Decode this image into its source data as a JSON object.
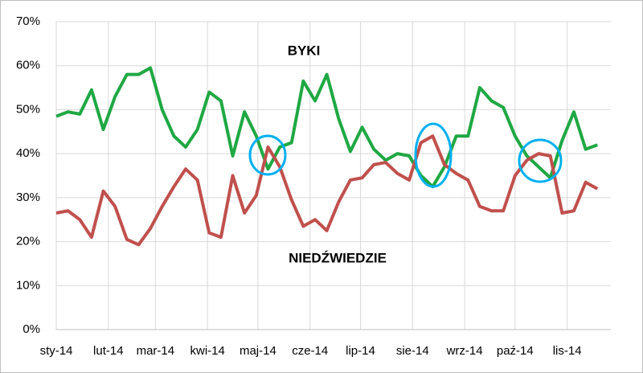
{
  "chart_data": {
    "type": "line",
    "x": [
      0,
      7,
      14,
      21,
      28,
      35,
      42,
      49,
      56,
      63,
      70,
      77,
      84,
      91,
      98,
      105,
      112,
      119,
      126,
      133,
      140,
      147,
      154,
      161,
      168,
      175,
      182,
      189,
      196,
      203,
      210,
      217,
      224,
      231,
      238,
      245,
      252,
      259,
      266,
      273,
      280,
      287,
      294,
      301,
      308,
      315,
      322
    ],
    "xlim": [
      0,
      330
    ],
    "xticks": [
      {
        "value": 0,
        "label": "sty-14"
      },
      {
        "value": 31,
        "label": "lut-14"
      },
      {
        "value": 59,
        "label": "mar-14"
      },
      {
        "value": 90,
        "label": "kwi-14"
      },
      {
        "value": 120,
        "label": "maj-14"
      },
      {
        "value": 151,
        "label": "cze-14"
      },
      {
        "value": 181,
        "label": "lip-14"
      },
      {
        "value": 212,
        "label": "sie-14"
      },
      {
        "value": 243,
        "label": "wrz-14"
      },
      {
        "value": 273,
        "label": "paź-14"
      },
      {
        "value": 304,
        "label": "lis-14"
      }
    ],
    "ylim": [
      0,
      70
    ],
    "yticks": [
      {
        "value": 0,
        "label": "0%"
      },
      {
        "value": 10,
        "label": "10%"
      },
      {
        "value": 20,
        "label": "20%"
      },
      {
        "value": 30,
        "label": "30%"
      },
      {
        "value": 40,
        "label": "40%"
      },
      {
        "value": 50,
        "label": "50%"
      },
      {
        "value": 60,
        "label": "60%"
      },
      {
        "value": 70,
        "label": "70%"
      }
    ],
    "grid": true,
    "series": [
      {
        "name": "BYKI",
        "color": "#1fa843",
        "values": [
          48.5,
          49.5,
          49,
          54.5,
          45.5,
          53,
          58,
          58,
          59.5,
          50,
          44,
          41.5,
          45.5,
          54,
          52,
          39.5,
          49.5,
          44,
          36.5,
          41.5,
          42.5,
          56.5,
          52,
          58,
          48,
          40.5,
          46,
          41,
          38.5,
          40,
          39.5,
          35,
          32.5,
          37,
          44,
          44,
          55,
          52,
          50.5,
          44,
          39.5,
          37,
          34.5,
          43,
          49.5,
          41,
          42
        ]
      },
      {
        "name": "NIEDŹWIEDZIE",
        "color": "#c0504d",
        "values": [
          26.5,
          27,
          25,
          21,
          31.5,
          28,
          20.5,
          19.3,
          23,
          28,
          32.5,
          36.5,
          34,
          22,
          21,
          35,
          26.5,
          30.5,
          41.5,
          37,
          29.5,
          23.5,
          25,
          22.5,
          29,
          34,
          34.5,
          37.5,
          38,
          35.5,
          34,
          42.5,
          44,
          37.5,
          35.5,
          34,
          28,
          27,
          27,
          35,
          38.5,
          40,
          39.5,
          26.5,
          27,
          33.5,
          32
        ]
      }
    ]
  }
}
